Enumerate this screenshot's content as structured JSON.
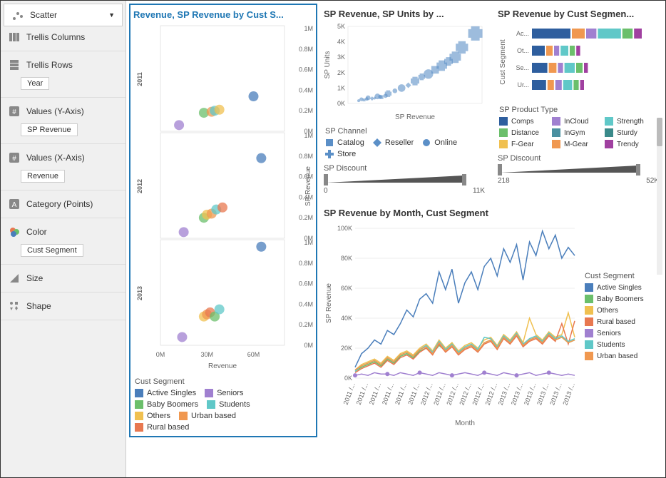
{
  "sidebar": {
    "chartType": "Scatter",
    "rows": [
      {
        "icon": "trellis-cols",
        "label": "Trellis Columns",
        "tag": null
      },
      {
        "icon": "trellis-rows",
        "label": "Trellis Rows",
        "tag": "Year"
      },
      {
        "icon": "values-y",
        "label": "Values (Y-Axis)",
        "tag": "SP Revenue"
      },
      {
        "icon": "values-x",
        "label": "Values (X-Axis)",
        "tag": "Revenue"
      },
      {
        "icon": "category",
        "label": "Category (Points)",
        "tag": null
      },
      {
        "icon": "color",
        "label": "Color",
        "tag": "Cust Segment"
      },
      {
        "icon": "size",
        "label": "Size",
        "tag": null
      },
      {
        "icon": "shape",
        "label": "Shape",
        "tag": null
      }
    ]
  },
  "palette": {
    "activeSingles": "#4a7ebb",
    "babyBoomers": "#6bbf6b",
    "others": "#f0c050",
    "ruralBased": "#e87850",
    "seniors": "#a080d0",
    "students": "#60c8c8",
    "urbanBased": "#f09850"
  },
  "mainScatter": {
    "title": "Revenue, SP Revenue by Cust S...",
    "rowLabels": [
      "2011",
      "2012",
      "2013"
    ],
    "xAxis": {
      "label": "Revenue",
      "ticks": [
        "0M",
        "30M",
        "60M"
      ],
      "min": 0,
      "max": 80
    },
    "yAxis": {
      "label": "SP Revenue",
      "ticks": [
        "0M",
        "0.2M",
        "0.4M",
        "0.6M",
        "0.8M",
        "1M"
      ],
      "min": 0,
      "max": 1
    },
    "panels": [
      {
        "points": [
          {
            "x": 28,
            "y": 0.18,
            "c": "#6bbf6b"
          },
          {
            "x": 33,
            "y": 0.19,
            "c": "#f09850"
          },
          {
            "x": 35,
            "y": 0.2,
            "c": "#60c8c8"
          },
          {
            "x": 38,
            "y": 0.21,
            "c": "#f0c050"
          },
          {
            "x": 60,
            "y": 0.34,
            "c": "#4a7ebb"
          },
          {
            "x": 12,
            "y": 0.06,
            "c": "#a080d0"
          }
        ]
      },
      {
        "points": [
          {
            "x": 15,
            "y": 0.06,
            "c": "#a080d0"
          },
          {
            "x": 28,
            "y": 0.2,
            "c": "#6bbf6b"
          },
          {
            "x": 30,
            "y": 0.23,
            "c": "#f0c050"
          },
          {
            "x": 33,
            "y": 0.24,
            "c": "#f09850"
          },
          {
            "x": 36,
            "y": 0.28,
            "c": "#60c8c8"
          },
          {
            "x": 40,
            "y": 0.3,
            "c": "#e87850"
          },
          {
            "x": 65,
            "y": 0.78,
            "c": "#4a7ebb"
          }
        ]
      },
      {
        "points": [
          {
            "x": 14,
            "y": 0.08,
            "c": "#a080d0"
          },
          {
            "x": 28,
            "y": 0.28,
            "c": "#f0c050"
          },
          {
            "x": 30,
            "y": 0.3,
            "c": "#f09850"
          },
          {
            "x": 32,
            "y": 0.32,
            "c": "#e87850"
          },
          {
            "x": 35,
            "y": 0.28,
            "c": "#6bbf6b"
          },
          {
            "x": 38,
            "y": 0.35,
            "c": "#60c8c8"
          },
          {
            "x": 65,
            "y": 0.96,
            "c": "#4a7ebb"
          }
        ]
      }
    ],
    "legendTitle": "Cust Segment",
    "legend": [
      {
        "label": "Active Singles",
        "c": "#4a7ebb"
      },
      {
        "label": "Seniors",
        "c": "#a080d0"
      },
      {
        "label": "Baby Boomers",
        "c": "#6bbf6b"
      },
      {
        "label": "Students",
        "c": "#60c8c8"
      },
      {
        "label": "Others",
        "c": "#f0c050"
      },
      {
        "label": "Urban based",
        "c": "#f09850"
      },
      {
        "label": "Rural based",
        "c": "#e87850"
      }
    ]
  },
  "topScatter": {
    "title": "SP Revenue, SP Units by ...",
    "xLabel": "SP Revenue",
    "yLabel": "SP Units",
    "yTicks": [
      "0K",
      "1K",
      "2K",
      "3K",
      "4K",
      "5K"
    ],
    "points": [
      {
        "x": 10,
        "y": 300,
        "s": 8,
        "sh": "circle"
      },
      {
        "x": 15,
        "y": 400,
        "s": 10,
        "sh": "circle"
      },
      {
        "x": 18,
        "y": 350,
        "s": 9,
        "sh": "diamond"
      },
      {
        "x": 22,
        "y": 500,
        "s": 12,
        "sh": "circle"
      },
      {
        "x": 25,
        "y": 450,
        "s": 8,
        "sh": "square"
      },
      {
        "x": 30,
        "y": 700,
        "s": 14,
        "sh": "plus"
      },
      {
        "x": 35,
        "y": 900,
        "s": 10,
        "sh": "circle"
      },
      {
        "x": 40,
        "y": 1100,
        "s": 16,
        "sh": "circle"
      },
      {
        "x": 45,
        "y": 1300,
        "s": 12,
        "sh": "diamond"
      },
      {
        "x": 50,
        "y": 1600,
        "s": 18,
        "sh": "plus"
      },
      {
        "x": 55,
        "y": 1900,
        "s": 14,
        "sh": "plus"
      },
      {
        "x": 60,
        "y": 2100,
        "s": 20,
        "sh": "circle"
      },
      {
        "x": 65,
        "y": 2400,
        "s": 16,
        "sh": "square"
      },
      {
        "x": 70,
        "y": 2700,
        "s": 22,
        "sh": "plus"
      },
      {
        "x": 75,
        "y": 3000,
        "s": 18,
        "sh": "plus"
      },
      {
        "x": 80,
        "y": 3300,
        "s": 24,
        "sh": "plus"
      },
      {
        "x": 85,
        "y": 4000,
        "s": 26,
        "sh": "plus"
      },
      {
        "x": 95,
        "y": 5000,
        "s": 30,
        "sh": "plus"
      },
      {
        "x": 12,
        "y": 250,
        "s": 6,
        "sh": "square"
      },
      {
        "x": 20,
        "y": 380,
        "s": 7,
        "sh": "diamond"
      },
      {
        "x": 28,
        "y": 550,
        "s": 9,
        "sh": "circle"
      },
      {
        "x": 8,
        "y": 200,
        "s": 6,
        "sh": "circle"
      },
      {
        "x": 14,
        "y": 320,
        "s": 7,
        "sh": "plus"
      },
      {
        "x": 24,
        "y": 480,
        "s": 8,
        "sh": "plus"
      }
    ],
    "pointColor": "#5b8fc7",
    "legendTitle": "SP Channel",
    "legend": [
      {
        "label": "Catalog",
        "sh": "square"
      },
      {
        "label": "Reseller",
        "sh": "diamond"
      },
      {
        "label": "Online",
        "sh": "circle"
      },
      {
        "label": "Store",
        "sh": "plus"
      }
    ],
    "slider": {
      "label": "SP Discount",
      "min": "0",
      "max": "11K"
    }
  },
  "stacked": {
    "title": "SP Revenue by Cust Segmen...",
    "yLabel": "Cust Segment",
    "cats": [
      "Ac...",
      "Ot...",
      "Se...",
      "Ur..."
    ],
    "rows": [
      [
        {
          "c": "#2e5e9e",
          "w": 30
        },
        {
          "c": "#f09850",
          "w": 10
        },
        {
          "c": "#a080d0",
          "w": 8
        },
        {
          "c": "#60c8c8",
          "w": 18
        },
        {
          "c": "#6bbf6b",
          "w": 8
        },
        {
          "c": "#a040a0",
          "w": 6
        }
      ],
      [
        {
          "c": "#2e5e9e",
          "w": 10
        },
        {
          "c": "#f09850",
          "w": 5
        },
        {
          "c": "#a080d0",
          "w": 4
        },
        {
          "c": "#60c8c8",
          "w": 6
        },
        {
          "c": "#6bbf6b",
          "w": 4
        },
        {
          "c": "#a040a0",
          "w": 3
        }
      ],
      [
        {
          "c": "#2e5e9e",
          "w": 12
        },
        {
          "c": "#f09850",
          "w": 6
        },
        {
          "c": "#a080d0",
          "w": 4
        },
        {
          "c": "#60c8c8",
          "w": 8
        },
        {
          "c": "#6bbf6b",
          "w": 5
        },
        {
          "c": "#a040a0",
          "w": 3
        }
      ],
      [
        {
          "c": "#2e5e9e",
          "w": 11
        },
        {
          "c": "#f09850",
          "w": 5
        },
        {
          "c": "#a080d0",
          "w": 5
        },
        {
          "c": "#60c8c8",
          "w": 7
        },
        {
          "c": "#6bbf6b",
          "w": 4
        },
        {
          "c": "#a040a0",
          "w": 3
        }
      ]
    ],
    "legendTitle": "SP Product Type",
    "legend": [
      {
        "label": "Comps",
        "c": "#2e5e9e"
      },
      {
        "label": "InCloud",
        "c": "#a080d0"
      },
      {
        "label": "Strength",
        "c": "#60c8c8"
      },
      {
        "label": "Distance",
        "c": "#6bbf6b"
      },
      {
        "label": "InGym",
        "c": "#4a90a0"
      },
      {
        "label": "Sturdy",
        "c": "#3a8a8a"
      },
      {
        "label": "F-Gear",
        "c": "#f0c050"
      },
      {
        "label": "M-Gear",
        "c": "#f09850"
      },
      {
        "label": "Trendy",
        "c": "#a040a0"
      }
    ],
    "slider": {
      "label": "SP Discount",
      "min": "218",
      "max": "52K"
    }
  },
  "lineChart": {
    "title": "SP Revenue by Month, Cust Segment",
    "xLabel": "Month",
    "yLabel": "SP Revenue",
    "yTicks": [
      "0K",
      "20K",
      "40K",
      "60K",
      "80K",
      "100K"
    ],
    "xTicks": [
      "2011 /...",
      "2011 /...",
      "2011 /...",
      "2011 /...",
      "2011 /...",
      "2011 /...",
      "2012 /...",
      "2012 /...",
      "2012 /...",
      "2012 /...",
      "2012 /...",
      "2012 /...",
      "2013 /...",
      "2013 /...",
      "2013 /...",
      "2013 /...",
      "2013 /...",
      "2013 /..."
    ],
    "series": [
      {
        "label": "Active Singles",
        "c": "#4a7ebb",
        "v": [
          8,
          18,
          22,
          28,
          25,
          35,
          32,
          40,
          50,
          45,
          58,
          62,
          55,
          78,
          65,
          80,
          55,
          70,
          78,
          65,
          82,
          88,
          75,
          95,
          85,
          98,
          72,
          100,
          90,
          108,
          95,
          105,
          88,
          96,
          90
        ]
      },
      {
        "label": "Baby Boomers",
        "c": "#6bbf6b",
        "v": [
          5,
          8,
          10,
          12,
          9,
          14,
          11,
          16,
          18,
          15,
          20,
          22,
          18,
          24,
          20,
          26,
          19,
          22,
          24,
          20,
          26,
          28,
          22,
          30,
          26,
          32,
          24,
          28,
          30,
          26,
          32,
          28,
          30,
          26,
          28
        ]
      },
      {
        "label": "Others",
        "c": "#f0c050",
        "v": [
          6,
          10,
          12,
          14,
          11,
          16,
          13,
          18,
          20,
          17,
          22,
          25,
          20,
          28,
          22,
          26,
          20,
          24,
          26,
          22,
          28,
          30,
          24,
          32,
          28,
          34,
          26,
          44,
          32,
          28,
          34,
          30,
          32,
          48,
          30
        ]
      },
      {
        "label": "Rural based",
        "c": "#e87850",
        "v": [
          4,
          7,
          9,
          11,
          8,
          13,
          10,
          15,
          17,
          14,
          19,
          22,
          17,
          25,
          19,
          23,
          17,
          21,
          23,
          19,
          25,
          27,
          21,
          29,
          25,
          31,
          23,
          27,
          29,
          25,
          31,
          27,
          40,
          25,
          42
        ]
      },
      {
        "label": "Seniors",
        "c": "#a080d0",
        "v": [
          2,
          3,
          2,
          4,
          3,
          3,
          2,
          4,
          3,
          2,
          4,
          3,
          2,
          4,
          3,
          2,
          3,
          4,
          3,
          2,
          4,
          3,
          2,
          4,
          3,
          2,
          3,
          4,
          2,
          3,
          4,
          3,
          2,
          3,
          2
        ]
      },
      {
        "label": "Students",
        "c": "#60c8c8",
        "v": [
          5,
          9,
          11,
          13,
          10,
          15,
          12,
          17,
          19,
          16,
          21,
          24,
          19,
          27,
          21,
          25,
          19,
          23,
          25,
          21,
          30,
          29,
          23,
          31,
          27,
          33,
          25,
          29,
          31,
          27,
          33,
          29,
          31,
          27,
          29
        ]
      },
      {
        "label": "Urban based",
        "c": "#f09850",
        "v": [
          6,
          9,
          11,
          13,
          10,
          15,
          12,
          17,
          19,
          16,
          21,
          23,
          18,
          26,
          20,
          24,
          18,
          22,
          24,
          20,
          26,
          28,
          22,
          30,
          26,
          32,
          24,
          28,
          30,
          26,
          32,
          28,
          30,
          26,
          28
        ]
      }
    ],
    "legendTitle": "Cust Segment"
  }
}
